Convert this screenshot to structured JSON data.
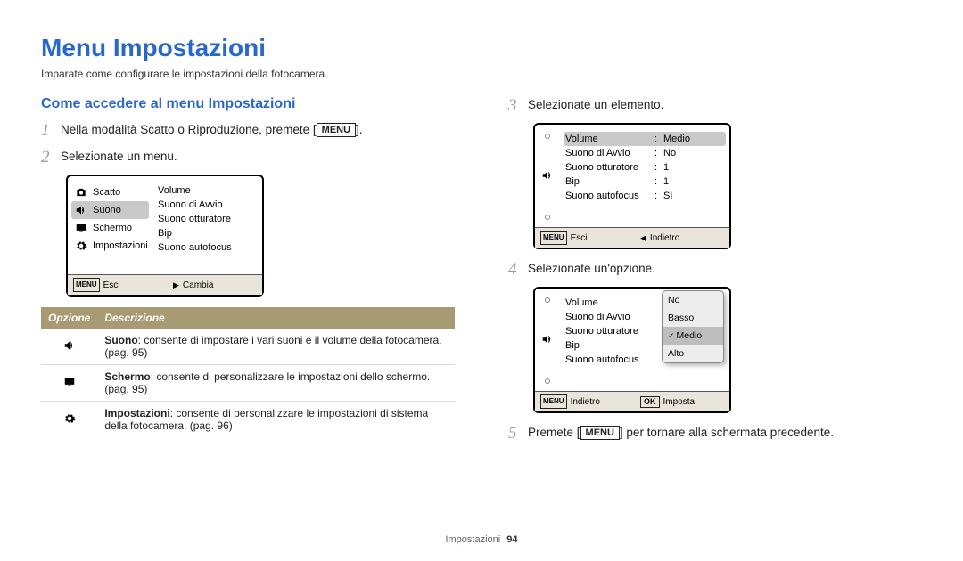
{
  "page": {
    "title": "Menu Impostazioni",
    "subtitle": "Imparate come configurare le impostazioni della fotocamera.",
    "footer_section": "Impostazioni",
    "footer_page": "94"
  },
  "left": {
    "section_heading": "Come accedere al menu Impostazioni",
    "step1_pre": "Nella modalità Scatto o Riproduzione, premete [",
    "step1_menu": "MENU",
    "step1_post": "].",
    "step2": "Selezionate un menu.",
    "cam1": {
      "left_items": [
        {
          "label": "Scatto",
          "icon": "camera"
        },
        {
          "label": "Suono",
          "icon": "speaker",
          "selected": true
        },
        {
          "label": "Schermo",
          "icon": "screen"
        },
        {
          "label": "Impostazioni",
          "icon": "gear"
        }
      ],
      "right_items": [
        "Volume",
        "Suono di Avvio",
        "Suono otturatore",
        "Bip",
        "Suono autofocus"
      ],
      "footer_left_icon": "MENU",
      "footer_left": "Esci",
      "footer_right_icon": "▶",
      "footer_right": "Cambia"
    },
    "table": {
      "header_option": "Opzione",
      "header_desc": "Descrizione",
      "rows": [
        {
          "icon": "speaker",
          "title": "Suono",
          "text": ": consente di impostare i vari suoni e il volume della fotocamera. (pag. 95)"
        },
        {
          "icon": "screen",
          "title": "Schermo",
          "text": ": consente di personalizzare le impostazioni dello schermo. (pag. 95)"
        },
        {
          "icon": "gear",
          "title": "Impostazioni",
          "text": ": consente di personalizzare le impostazioni di sistema della fotocamera. (pag. 96)"
        }
      ]
    }
  },
  "right": {
    "step3": "Selezionate un elemento.",
    "cam2": {
      "rows": [
        {
          "label": "Volume",
          "value": "Medio",
          "selected": true
        },
        {
          "label": "Suono di Avvio",
          "value": "No"
        },
        {
          "label": "Suono otturatore",
          "value": "1"
        },
        {
          "label": "Bip",
          "value": "1"
        },
        {
          "label": "Suono autofocus",
          "value": "Sì"
        }
      ],
      "footer_left_icon": "MENU",
      "footer_left": "Esci",
      "footer_right_icon": "◀",
      "footer_right": "Indietro"
    },
    "step4": "Selezionate un'opzione.",
    "cam3": {
      "rows": [
        {
          "label": "Volume"
        },
        {
          "label": "Suono di Avvio"
        },
        {
          "label": "Suono otturatore"
        },
        {
          "label": "Bip"
        },
        {
          "label": "Suono autofocus"
        }
      ],
      "popup": [
        "No",
        "Basso",
        "Medio",
        "Alto"
      ],
      "popup_selected": "Medio",
      "footer_left_icon": "MENU",
      "footer_left": "Indietro",
      "footer_right_icon": "OK",
      "footer_right": "Imposta"
    },
    "step5_pre": "Premete [",
    "step5_menu": "MENU",
    "step5_post": "] per tornare alla schermata precedente."
  },
  "colors": {
    "heading": "#2967c9",
    "table_header_bg": "#a89a73",
    "selected_bg": "#c9c9c9",
    "popup_bg": "#ededed"
  }
}
